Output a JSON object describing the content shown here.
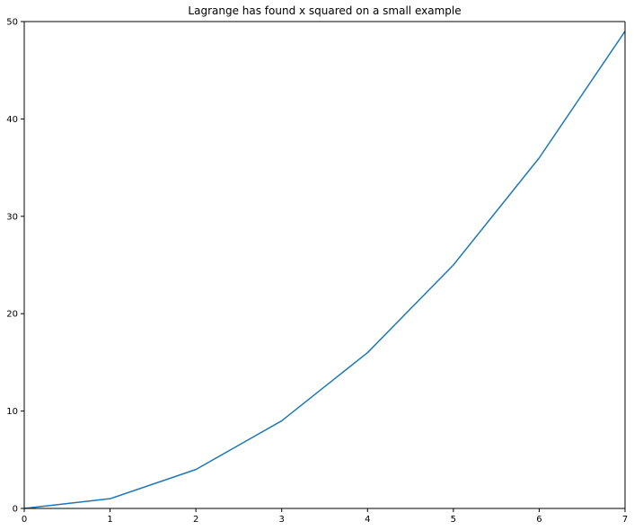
{
  "chart_data": {
    "type": "line",
    "title": "Lagrange has found x squared on a small example",
    "xlabel": "",
    "ylabel": "",
    "xlim": [
      0,
      7
    ],
    "ylim": [
      0,
      50
    ],
    "xticks": [
      0,
      1,
      2,
      3,
      4,
      5,
      6,
      7
    ],
    "yticks": [
      0,
      10,
      20,
      30,
      40,
      50
    ],
    "grid": false,
    "series": [
      {
        "color": "#1f77b4",
        "x": [
          0,
          1,
          2,
          3,
          4,
          5,
          6,
          7
        ],
        "y": [
          0,
          1,
          4,
          9,
          16,
          25,
          36,
          49
        ]
      }
    ]
  }
}
